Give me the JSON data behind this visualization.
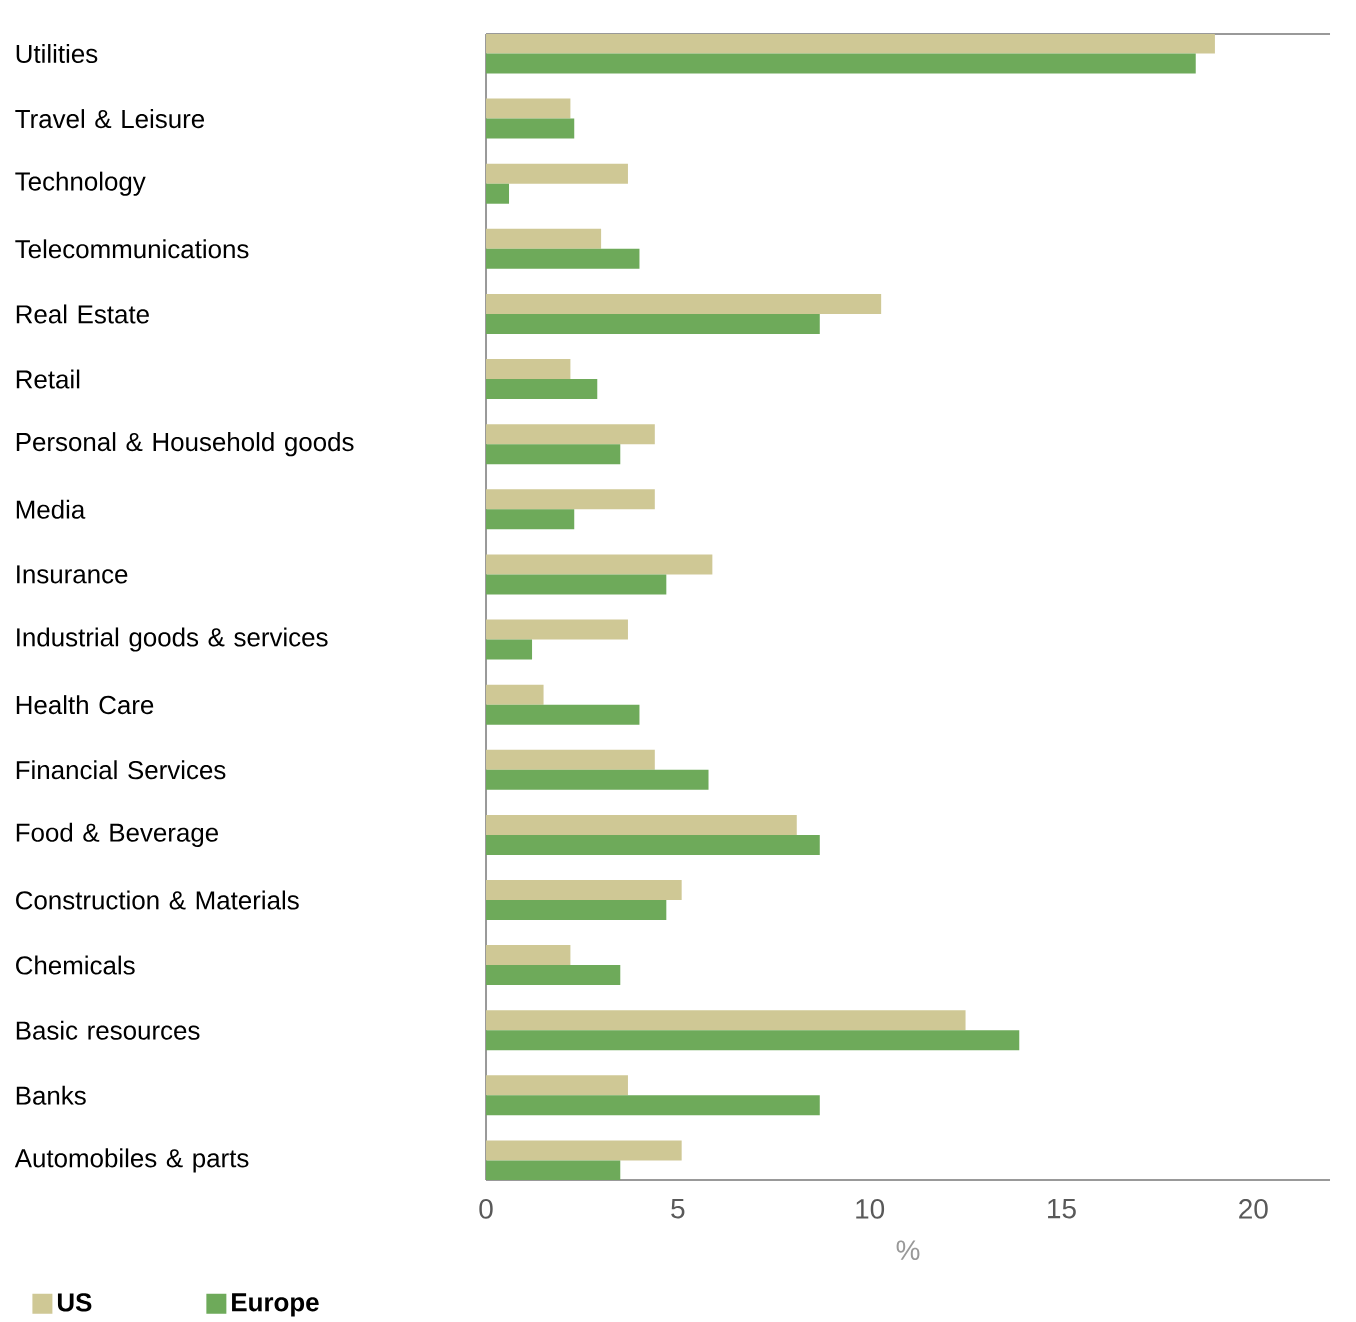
{
  "chart_data": {
    "type": "bar",
    "orientation": "horizontal",
    "xlabel": "%",
    "legend": "bottom left",
    "categories": [
      "Utilities",
      "Travel & Leisure",
      "Technology",
      "Telecommunications",
      "Real Estate",
      "Retail",
      "Personal & Household goods",
      "Media",
      "Insurance",
      "Industrial goods & services",
      "Health Care",
      "Financial Services",
      "Food & Beverage",
      "Construction & Materials",
      "Chemicals",
      "Basic resources",
      "Banks",
      "Automobiles & parts"
    ],
    "series": [
      {
        "name": "US",
        "color": "#cfc895",
        "values": [
          19.0,
          2.2,
          3.7,
          3.0,
          10.3,
          2.2,
          4.4,
          4.4,
          5.9,
          3.7,
          1.5,
          4.4,
          8.1,
          5.1,
          2.2,
          12.5,
          3.7,
          5.1
        ]
      },
      {
        "name": "Europe",
        "color": "#6eaa5a",
        "values": [
          18.5,
          2.3,
          0.6,
          4.0,
          8.7,
          2.9,
          3.5,
          2.3,
          4.7,
          1.2,
          4.0,
          5.8,
          8.7,
          4.7,
          3.5,
          13.9,
          8.7,
          3.5
        ]
      }
    ],
    "xlim": [
      0,
      22
    ],
    "xticks": [
      0,
      5,
      10,
      15,
      20
    ]
  }
}
